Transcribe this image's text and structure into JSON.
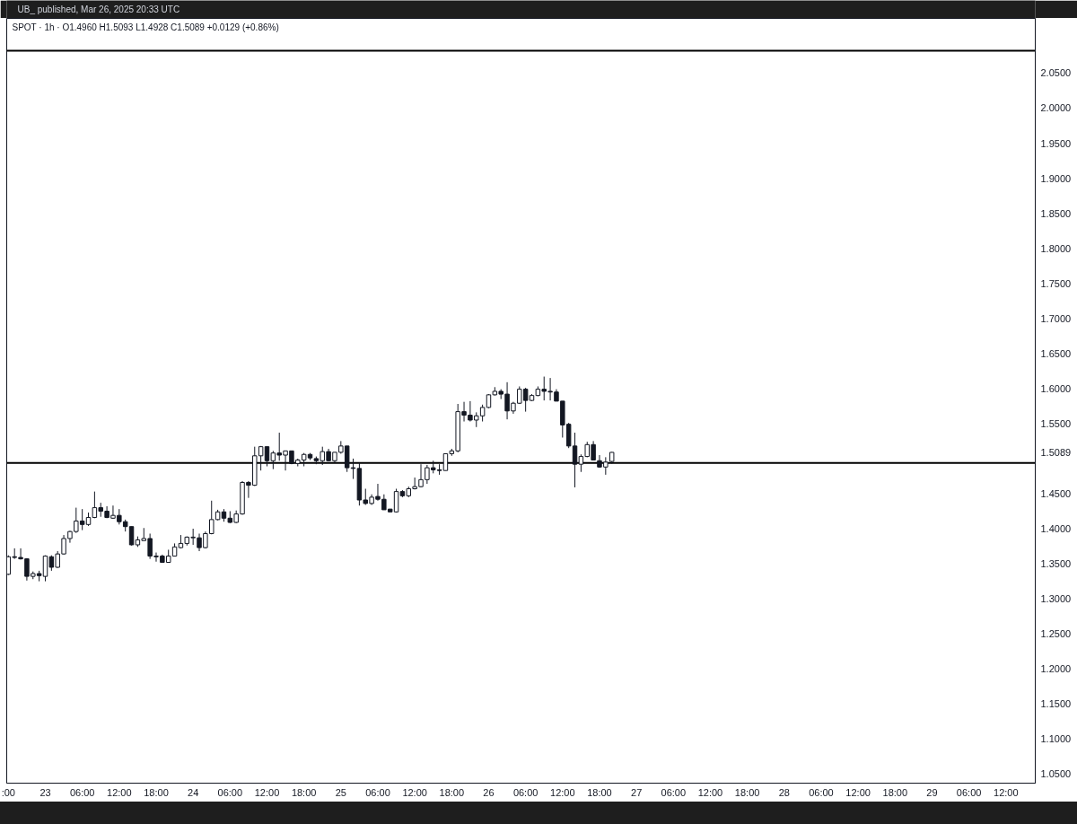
{
  "chart_data": {
    "type": "candlestick",
    "title": "SPOT · 1h · O1.4960 H1.5093 L1.4928 C1.5089 +0.0129 (+0.86%)",
    "annotations": [
      "UB_ published, Mar 26, 2025 20:33 UTC"
    ],
    "x": [
      "2025-03-22T18:00",
      "2025-03-22T19:00",
      "2025-03-22T20:00",
      "2025-03-22T21:00",
      "2025-03-22T22:00",
      "2025-03-22T23:00",
      "2025-03-23T00:00",
      "2025-03-23T01:00",
      "2025-03-23T02:00",
      "2025-03-23T03:00",
      "2025-03-23T04:00",
      "2025-03-23T05:00",
      "2025-03-23T06:00",
      "2025-03-23T07:00",
      "2025-03-23T08:00",
      "2025-03-23T09:00",
      "2025-03-23T10:00",
      "2025-03-23T11:00",
      "2025-03-23T12:00",
      "2025-03-23T13:00",
      "2025-03-23T14:00",
      "2025-03-23T15:00",
      "2025-03-23T16:00",
      "2025-03-23T17:00",
      "2025-03-23T18:00",
      "2025-03-23T19:00",
      "2025-03-23T20:00",
      "2025-03-23T21:00",
      "2025-03-23T22:00",
      "2025-03-23T23:00",
      "2025-03-24T00:00",
      "2025-03-24T01:00",
      "2025-03-24T02:00",
      "2025-03-24T03:00",
      "2025-03-24T04:00",
      "2025-03-24T05:00",
      "2025-03-24T06:00",
      "2025-03-24T07:00",
      "2025-03-24T08:00",
      "2025-03-24T09:00",
      "2025-03-24T10:00",
      "2025-03-24T11:00",
      "2025-03-24T12:00",
      "2025-03-24T13:00",
      "2025-03-24T14:00",
      "2025-03-24T15:00",
      "2025-03-24T16:00",
      "2025-03-24T17:00",
      "2025-03-24T18:00",
      "2025-03-24T19:00",
      "2025-03-24T20:00",
      "2025-03-24T21:00",
      "2025-03-24T22:00",
      "2025-03-24T23:00",
      "2025-03-25T00:00",
      "2025-03-25T01:00",
      "2025-03-25T02:00",
      "2025-03-25T03:00",
      "2025-03-25T04:00",
      "2025-03-25T05:00",
      "2025-03-25T06:00",
      "2025-03-25T07:00",
      "2025-03-25T08:00",
      "2025-03-25T09:00",
      "2025-03-25T10:00",
      "2025-03-25T11:00",
      "2025-03-25T12:00",
      "2025-03-25T13:00",
      "2025-03-25T14:00",
      "2025-03-25T15:00",
      "2025-03-25T16:00",
      "2025-03-25T17:00",
      "2025-03-25T18:00",
      "2025-03-25T19:00",
      "2025-03-25T20:00",
      "2025-03-25T21:00",
      "2025-03-25T22:00",
      "2025-03-25T23:00",
      "2025-03-26T00:00",
      "2025-03-26T01:00",
      "2025-03-26T02:00",
      "2025-03-26T03:00",
      "2025-03-26T04:00",
      "2025-03-26T05:00",
      "2025-03-26T06:00",
      "2025-03-26T07:00",
      "2025-03-26T08:00",
      "2025-03-26T09:00",
      "2025-03-26T10:00",
      "2025-03-26T11:00",
      "2025-03-26T12:00",
      "2025-03-26T13:00",
      "2025-03-26T14:00",
      "2025-03-26T15:00",
      "2025-03-26T16:00",
      "2025-03-26T17:00",
      "2025-03-26T18:00",
      "2025-03-26T19:00",
      "2025-03-26T20:00"
    ],
    "ohlc": [
      [
        1.335,
        1.362,
        1.334,
        1.36
      ],
      [
        1.36,
        1.372,
        1.357,
        1.359
      ],
      [
        1.359,
        1.372,
        1.356,
        1.357
      ],
      [
        1.357,
        1.358,
        1.326,
        1.332
      ],
      [
        1.332,
        1.339,
        1.328,
        1.336
      ],
      [
        1.336,
        1.34,
        1.325,
        1.333
      ],
      [
        1.332,
        1.362,
        1.325,
        1.361
      ],
      [
        1.36,
        1.362,
        1.34,
        1.345
      ],
      [
        1.345,
        1.368,
        1.344,
        1.364
      ],
      [
        1.364,
        1.391,
        1.363,
        1.386
      ],
      [
        1.386,
        1.397,
        1.38,
        1.396
      ],
      [
        1.396,
        1.43,
        1.394,
        1.411
      ],
      [
        1.411,
        1.428,
        1.398,
        1.406
      ],
      [
        1.406,
        1.423,
        1.404,
        1.416
      ],
      [
        1.416,
        1.453,
        1.415,
        1.43
      ],
      [
        1.43,
        1.437,
        1.417,
        1.425
      ],
      [
        1.425,
        1.432,
        1.415,
        1.416
      ],
      [
        1.415,
        1.433,
        1.414,
        1.419
      ],
      [
        1.419,
        1.428,
        1.406,
        1.41
      ],
      [
        1.41,
        1.413,
        1.396,
        1.403
      ],
      [
        1.403,
        1.403,
        1.376,
        1.377
      ],
      [
        1.377,
        1.389,
        1.374,
        1.384
      ],
      [
        1.383,
        1.401,
        1.383,
        1.386
      ],
      [
        1.386,
        1.393,
        1.357,
        1.361
      ],
      [
        1.361,
        1.366,
        1.353,
        1.36
      ],
      [
        1.361,
        1.363,
        1.352,
        1.352
      ],
      [
        1.352,
        1.37,
        1.352,
        1.361
      ],
      [
        1.361,
        1.379,
        1.361,
        1.374
      ],
      [
        1.373,
        1.391,
        1.372,
        1.379
      ],
      [
        1.379,
        1.389,
        1.376,
        1.388
      ],
      [
        1.387,
        1.4,
        1.377,
        1.388
      ],
      [
        1.387,
        1.393,
        1.368,
        1.373
      ],
      [
        1.373,
        1.396,
        1.372,
        1.393
      ],
      [
        1.393,
        1.44,
        1.392,
        1.413
      ],
      [
        1.413,
        1.427,
        1.412,
        1.424
      ],
      [
        1.424,
        1.428,
        1.41,
        1.415
      ],
      [
        1.415,
        1.425,
        1.408,
        1.409
      ],
      [
        1.409,
        1.426,
        1.408,
        1.421
      ],
      [
        1.421,
        1.468,
        1.42,
        1.466
      ],
      [
        1.466,
        1.468,
        1.444,
        1.462
      ],
      [
        1.462,
        1.517,
        1.461,
        1.504
      ],
      [
        1.504,
        1.518,
        1.483,
        1.517
      ],
      [
        1.517,
        1.517,
        1.489,
        1.497
      ],
      [
        1.497,
        1.511,
        1.485,
        1.508
      ],
      [
        1.508,
        1.537,
        1.497,
        1.505
      ],
      [
        1.505,
        1.511,
        1.483,
        1.511
      ],
      [
        1.511,
        1.511,
        1.492,
        1.493
      ],
      [
        1.493,
        1.5,
        1.489,
        1.498
      ],
      [
        1.498,
        1.508,
        1.489,
        1.506
      ],
      [
        1.506,
        1.508,
        1.498,
        1.501
      ],
      [
        1.5,
        1.503,
        1.492,
        1.497
      ],
      [
        1.497,
        1.517,
        1.491,
        1.51
      ],
      [
        1.51,
        1.514,
        1.496,
        1.497
      ],
      [
        1.497,
        1.509,
        1.494,
        1.509
      ],
      [
        1.509,
        1.525,
        1.507,
        1.518
      ],
      [
        1.518,
        1.518,
        1.481,
        1.487
      ],
      [
        1.487,
        1.5,
        1.471,
        1.486
      ],
      [
        1.486,
        1.494,
        1.433,
        1.441
      ],
      [
        1.441,
        1.457,
        1.434,
        1.436
      ],
      [
        1.436,
        1.449,
        1.434,
        1.445
      ],
      [
        1.446,
        1.464,
        1.44,
        1.442
      ],
      [
        1.442,
        1.449,
        1.427,
        1.427
      ],
      [
        1.428,
        1.428,
        1.424,
        1.424
      ],
      [
        1.424,
        1.457,
        1.423,
        1.453
      ],
      [
        1.453,
        1.455,
        1.445,
        1.447
      ],
      [
        1.447,
        1.46,
        1.445,
        1.457
      ],
      [
        1.457,
        1.473,
        1.456,
        1.46
      ],
      [
        1.46,
        1.492,
        1.459,
        1.47
      ],
      [
        1.47,
        1.491,
        1.464,
        1.487
      ],
      [
        1.487,
        1.497,
        1.479,
        1.484
      ],
      [
        1.484,
        1.492,
        1.477,
        1.483
      ],
      [
        1.483,
        1.507,
        1.483,
        1.507
      ],
      [
        1.507,
        1.514,
        1.504,
        1.511
      ],
      [
        1.511,
        1.578,
        1.509,
        1.567
      ],
      [
        1.567,
        1.581,
        1.553,
        1.562
      ],
      [
        1.562,
        1.582,
        1.553,
        1.555
      ],
      [
        1.555,
        1.566,
        1.545,
        1.561
      ],
      [
        1.561,
        1.577,
        1.553,
        1.573
      ],
      [
        1.573,
        1.592,
        1.572,
        1.591
      ],
      [
        1.591,
        1.602,
        1.59,
        1.596
      ],
      [
        1.596,
        1.599,
        1.585,
        1.592
      ],
      [
        1.592,
        1.609,
        1.556,
        1.568
      ],
      [
        1.568,
        1.581,
        1.564,
        1.579
      ],
      [
        1.579,
        1.603,
        1.578,
        1.599
      ],
      [
        1.599,
        1.601,
        1.567,
        1.583
      ],
      [
        1.583,
        1.592,
        1.582,
        1.59
      ],
      [
        1.59,
        1.603,
        1.589,
        1.599
      ],
      [
        1.599,
        1.617,
        1.583,
        1.596
      ],
      [
        1.596,
        1.615,
        1.583,
        1.595
      ],
      [
        1.595,
        1.599,
        1.582,
        1.582
      ],
      [
        1.582,
        1.582,
        1.53,
        1.548
      ],
      [
        1.549,
        1.551,
        1.515,
        1.518
      ],
      [
        1.518,
        1.537,
        1.459,
        1.492
      ],
      [
        1.492,
        1.506,
        1.481,
        1.503
      ],
      [
        1.503,
        1.524,
        1.502,
        1.52
      ],
      [
        1.52,
        1.525,
        1.498,
        1.498
      ],
      [
        1.497,
        1.505,
        1.487,
        1.488
      ],
      [
        1.488,
        1.502,
        1.477,
        1.495
      ],
      [
        1.496,
        1.5093,
        1.4928,
        1.5089
      ]
    ],
    "xlim": [
      "2025-03-22T17:44",
      "2025-03-29T16:46"
    ],
    "xticks": [
      {
        "value": "2025-03-22T18:00",
        "label": ":00"
      },
      {
        "value": "2025-03-23T00:00",
        "label": "23"
      },
      {
        "value": "2025-03-23T06:00",
        "label": "06:00"
      },
      {
        "value": "2025-03-23T12:00",
        "label": "12:00"
      },
      {
        "value": "2025-03-23T18:00",
        "label": "18:00"
      },
      {
        "value": "2025-03-24T00:00",
        "label": "24"
      },
      {
        "value": "2025-03-24T06:00",
        "label": "06:00"
      },
      {
        "value": "2025-03-24T12:00",
        "label": "12:00"
      },
      {
        "value": "2025-03-24T18:00",
        "label": "18:00"
      },
      {
        "value": "2025-03-25T00:00",
        "label": "25"
      },
      {
        "value": "2025-03-25T06:00",
        "label": "06:00"
      },
      {
        "value": "2025-03-25T12:00",
        "label": "12:00"
      },
      {
        "value": "2025-03-25T18:00",
        "label": "18:00"
      },
      {
        "value": "2025-03-26T00:00",
        "label": "26"
      },
      {
        "value": "2025-03-26T06:00",
        "label": "06:00"
      },
      {
        "value": "2025-03-26T12:00",
        "label": "12:00"
      },
      {
        "value": "2025-03-26T18:00",
        "label": "18:00"
      },
      {
        "value": "2025-03-27T00:00",
        "label": "27"
      },
      {
        "value": "2025-03-27T06:00",
        "label": "06:00"
      },
      {
        "value": "2025-03-27T12:00",
        "label": "12:00"
      },
      {
        "value": "2025-03-27T18:00",
        "label": "18:00"
      },
      {
        "value": "2025-03-28T00:00",
        "label": "28"
      },
      {
        "value": "2025-03-28T06:00",
        "label": "06:00"
      },
      {
        "value": "2025-03-28T12:00",
        "label": "12:00"
      },
      {
        "value": "2025-03-28T18:00",
        "label": "18:00"
      },
      {
        "value": "2025-03-29T00:00",
        "label": "29"
      },
      {
        "value": "2025-03-29T06:00",
        "label": "06:00"
      },
      {
        "value": "2025-03-29T12:00",
        "label": "12:00"
      }
    ],
    "ylim": [
      1.037,
      2.128
    ],
    "yticks": [
      {
        "value": 1.05,
        "label": "1.0500"
      },
      {
        "value": 1.1,
        "label": "1.1000"
      },
      {
        "value": 1.15,
        "label": "1.1500"
      },
      {
        "value": 1.2,
        "label": "1.2000"
      },
      {
        "value": 1.25,
        "label": "1.2500"
      },
      {
        "value": 1.3,
        "label": "1.3000"
      },
      {
        "value": 1.35,
        "label": "1.3500"
      },
      {
        "value": 1.4,
        "label": "1.4000"
      },
      {
        "value": 1.45,
        "label": "1.4500"
      },
      {
        "value": 1.5089,
        "label": "1.5089"
      },
      {
        "value": 1.55,
        "label": "1.5500"
      },
      {
        "value": 1.6,
        "label": "1.6000"
      },
      {
        "value": 1.65,
        "label": "1.6500"
      },
      {
        "value": 1.7,
        "label": "1.7000"
      },
      {
        "value": 1.75,
        "label": "1.7500"
      },
      {
        "value": 1.8,
        "label": "1.8000"
      },
      {
        "value": 1.85,
        "label": "1.8500"
      },
      {
        "value": 1.9,
        "label": "1.9000"
      },
      {
        "value": 1.95,
        "label": "1.9500"
      },
      {
        "value": 2.0,
        "label": "2.0000"
      },
      {
        "value": 2.05,
        "label": "2.0500"
      }
    ],
    "ref_lines": [
      {
        "axis": "y",
        "value": 1.4937,
        "color": "#000000"
      },
      {
        "axis": "y",
        "value": 2.082,
        "color": "#000000"
      }
    ]
  }
}
